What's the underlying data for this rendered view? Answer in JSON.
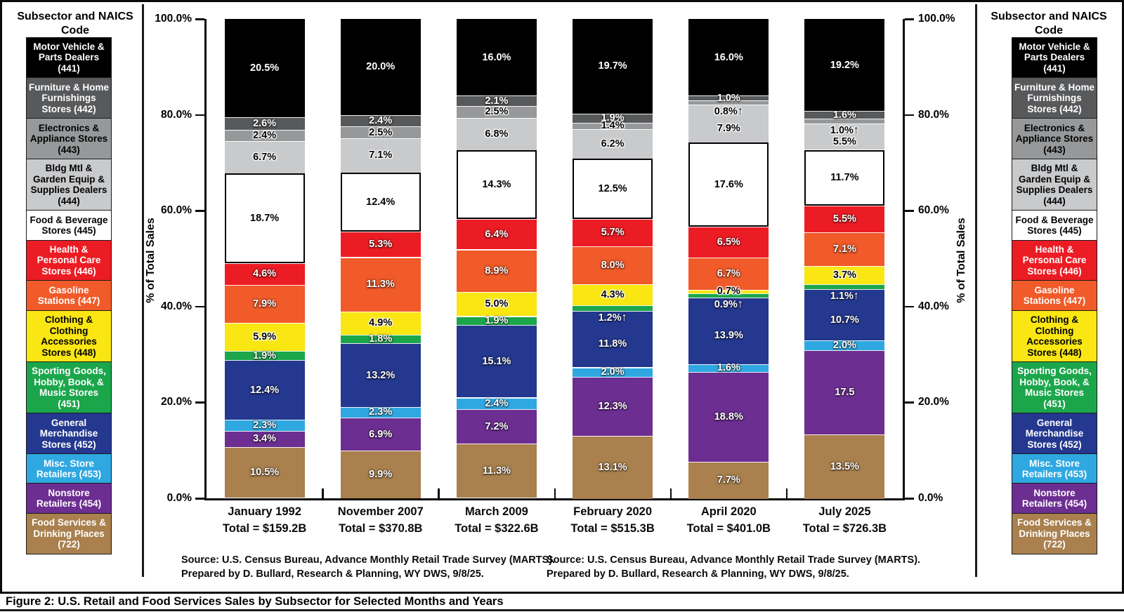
{
  "figure": {
    "caption": "Figure 2: U.S. Retail and Food Services Sales by Subsector for Selected Months and Years"
  },
  "sources": {
    "line1": "Source: U.S. Census Bureau, Advance Monthly Retail Trade Survey (MARTS).",
    "line2": "Prepared by D. Bullard, Research & Planning, WY DWS, 9/8/25."
  },
  "legend": {
    "title": "Subsector and NAICS Code",
    "items": [
      {
        "code": "441",
        "label": "Motor Vehicle & Parts Dealers (441)",
        "color": "#000000",
        "text": "#ffffff"
      },
      {
        "code": "442",
        "label": "Furniture & Home Furnishings Stores (442)",
        "color": "#58595b",
        "text": "#ffffff"
      },
      {
        "code": "443",
        "label": "Electronics & Appliance Stores (443)",
        "color": "#96989a",
        "text": "#000000"
      },
      {
        "code": "444",
        "label": "Bldg Mtl & Garden Equip & Supplies Dealers (444)",
        "color": "#c9cacc",
        "text": "#000000"
      },
      {
        "code": "445",
        "label": "Food & Beverage Stores (445)",
        "color": "#ffffff",
        "text": "#000000"
      },
      {
        "code": "446",
        "label": "Health & Personal Care Stores (446)",
        "color": "#ec1c24",
        "text": "#ffffff"
      },
      {
        "code": "447",
        "label": "Gasoline Stations (447)",
        "color": "#f15a29",
        "text": "#ffffff"
      },
      {
        "code": "448",
        "label": "Clothing & Clothing Accessories Stores (448)",
        "color": "#f9e612",
        "text": "#000000"
      },
      {
        "code": "451",
        "label": "Sporting Goods, Hobby, Book, & Music Stores (451)",
        "color": "#1ca64c",
        "text": "#ffffff"
      },
      {
        "code": "452",
        "label": "General Merchandise Stores (452)",
        "color": "#24388f",
        "text": "#ffffff"
      },
      {
        "code": "453",
        "label": "Misc. Store Retailers (453)",
        "color": "#2fa8e1",
        "text": "#ffffff"
      },
      {
        "code": "454",
        "label": "Nonstore Retailers (454)",
        "color": "#6c2e91",
        "text": "#ffffff"
      },
      {
        "code": "722",
        "label": "Food Services & Drinking Places (722)",
        "color": "#a9804e",
        "text": "#ffffff"
      }
    ]
  },
  "axis": {
    "ylabel": "% of Total Sales",
    "ticks": [
      {
        "label": "100.0%",
        "value": 100
      },
      {
        "label": "80.0%",
        "value": 80
      },
      {
        "label": "60.0%",
        "value": 60
      },
      {
        "label": "40.0%",
        "value": 40
      },
      {
        "label": "20.0%",
        "value": 20
      },
      {
        "label": "0.0%",
        "value": 0
      }
    ]
  },
  "chart_data": {
    "type": "bar",
    "stacked": true,
    "title": "",
    "xlabel": "",
    "ylabel": "% of Total Sales",
    "ylim": [
      0,
      100
    ],
    "grid": false,
    "legend_position": "both-sides",
    "categories": [
      "January 1992",
      "November 2007",
      "March 2009",
      "February 2020",
      "April 2020",
      "July 2025"
    ],
    "category_totals": [
      "Total = $159.2B",
      "Total = $370.8B",
      "Total = $322.6B",
      "Total = $515.3B",
      "Total = $401.0B",
      "Total = $726.3B"
    ],
    "stack_order_top_to_bottom": [
      "441",
      "442",
      "443",
      "444",
      "445",
      "446",
      "447",
      "448",
      "451",
      "452",
      "453",
      "454",
      "722"
    ],
    "series": [
      {
        "code": "441",
        "name": "Motor Vehicle & Parts Dealers (441)",
        "values": [
          20.5,
          20.0,
          16.0,
          19.7,
          16.0,
          19.2
        ]
      },
      {
        "code": "442",
        "name": "Furniture & Home Furnishings Stores (442)",
        "values": [
          2.6,
          2.4,
          2.1,
          1.9,
          1.0,
          1.6
        ]
      },
      {
        "code": "443",
        "name": "Electronics & Appliance Stores (443)",
        "values": [
          2.4,
          2.5,
          2.5,
          1.4,
          0.8,
          1.0
        ]
      },
      {
        "code": "444",
        "name": "Bldg Mtl & Garden Equip & Supplies Dealers (444)",
        "values": [
          6.7,
          7.1,
          6.8,
          6.2,
          7.9,
          5.5
        ]
      },
      {
        "code": "445",
        "name": "Food & Beverage Stores (445)",
        "values": [
          18.7,
          12.4,
          14.3,
          12.5,
          17.6,
          11.7
        ]
      },
      {
        "code": "446",
        "name": "Health & Personal Care Stores (446)",
        "values": [
          4.6,
          5.3,
          6.4,
          5.7,
          6.5,
          5.5
        ]
      },
      {
        "code": "447",
        "name": "Gasoline Stations (447)",
        "values": [
          7.9,
          11.3,
          8.9,
          8.0,
          6.7,
          7.1
        ]
      },
      {
        "code": "448",
        "name": "Clothing & Clothing Accessories Stores (448)",
        "values": [
          5.9,
          4.9,
          5.0,
          4.3,
          0.7,
          3.7
        ]
      },
      {
        "code": "451",
        "name": "Sporting Goods, Hobby, Book, & Music Stores (451)",
        "values": [
          1.9,
          1.8,
          1.9,
          1.2,
          0.9,
          1.1
        ]
      },
      {
        "code": "452",
        "name": "General Merchandise Stores (452)",
        "values": [
          12.4,
          13.2,
          15.1,
          11.8,
          13.9,
          10.7
        ]
      },
      {
        "code": "453",
        "name": "Misc. Store Retailers (453)",
        "values": [
          2.3,
          2.3,
          2.4,
          2.0,
          1.6,
          2.0
        ]
      },
      {
        "code": "454",
        "name": "Nonstore Retailers (454)",
        "values": [
          3.4,
          6.9,
          7.2,
          12.3,
          18.8,
          17.5
        ]
      },
      {
        "code": "722",
        "name": "Food Services & Drinking Places (722)",
        "values": [
          10.5,
          9.9,
          11.3,
          13.1,
          7.7,
          13.5
        ]
      }
    ],
    "label_overrides": [
      {
        "category": 5,
        "code": "454",
        "text": "17.5"
      }
    ],
    "arrow_up_labels_below_segment": [
      {
        "category": 3,
        "code": "451"
      },
      {
        "category": 4,
        "code": "443"
      },
      {
        "category": 4,
        "code": "451"
      },
      {
        "category": 5,
        "code": "443"
      },
      {
        "category": 5,
        "code": "451"
      }
    ]
  }
}
